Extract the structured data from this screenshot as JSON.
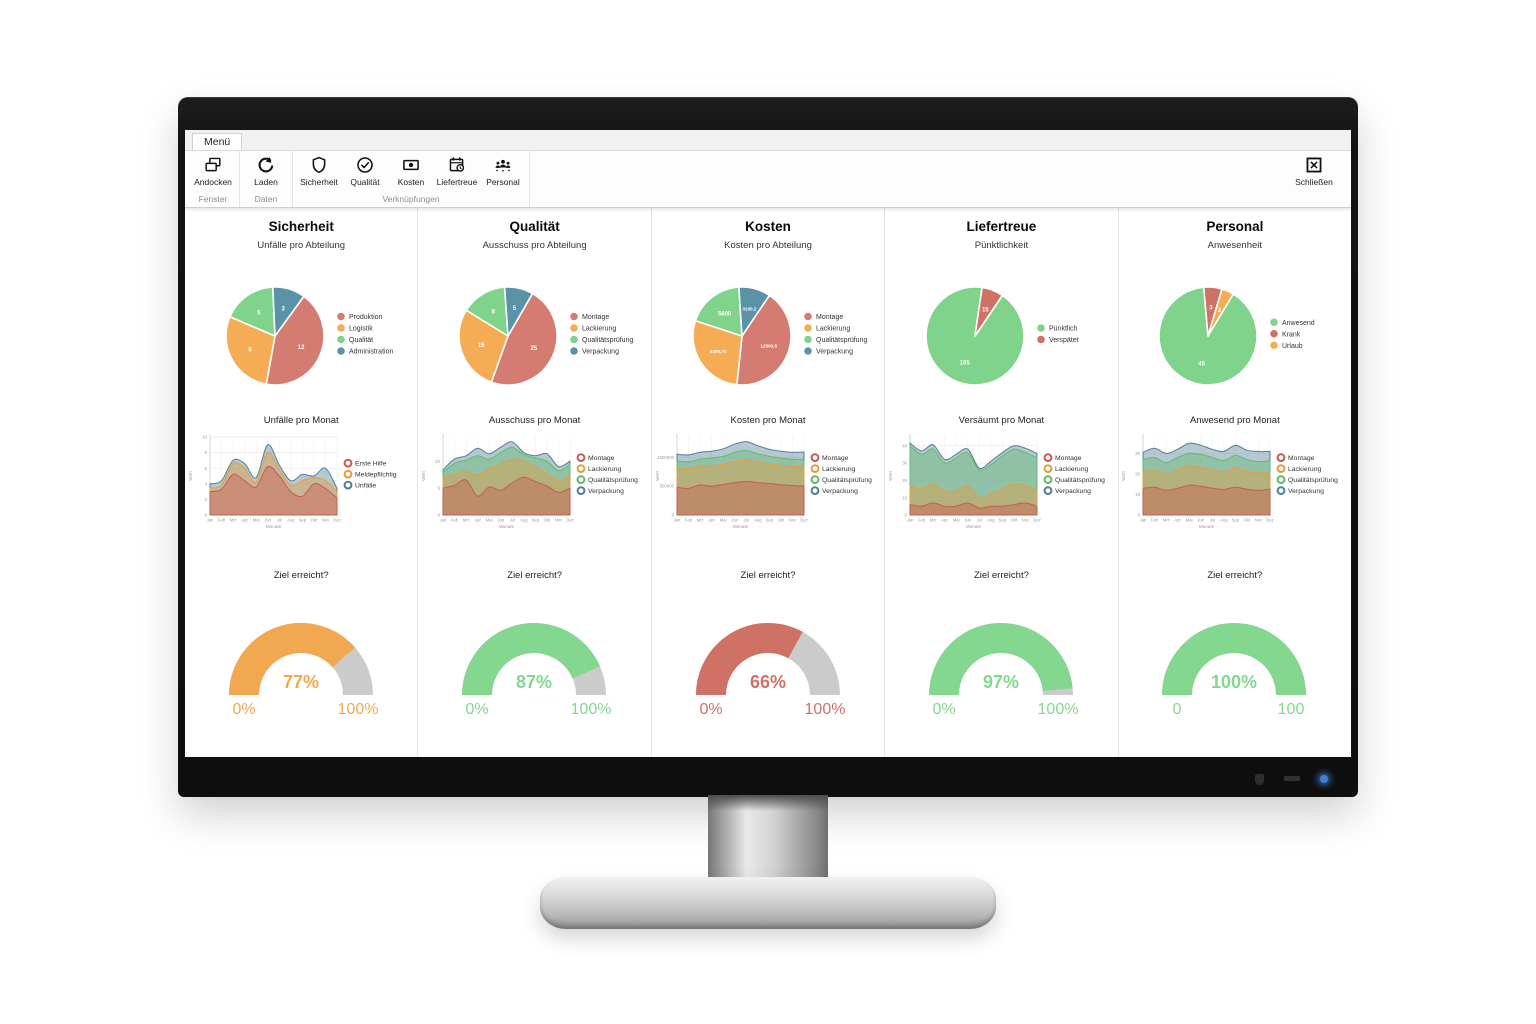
{
  "window": {
    "menu_tab": "Menü"
  },
  "ribbon": {
    "groups": [
      {
        "label": "Fenster",
        "buttons": [
          {
            "label": "Andocken",
            "icon": "dock-icon"
          }
        ]
      },
      {
        "label": "Daten",
        "buttons": [
          {
            "label": "Laden",
            "icon": "refresh-icon"
          }
        ]
      },
      {
        "label": "Verknüpfungen",
        "buttons": [
          {
            "label": "Sicherheit",
            "icon": "shield-icon"
          },
          {
            "label": "Qualität",
            "icon": "check-circle-icon"
          },
          {
            "label": "Kosten",
            "icon": "banknote-icon"
          },
          {
            "label": "Liefertreue",
            "icon": "calendar-clock-icon"
          },
          {
            "label": "Personal",
            "icon": "people-icon"
          }
        ]
      }
    ],
    "close_button": {
      "label": "Schließen",
      "icon": "close-box-icon"
    }
  },
  "colors": {
    "pie_red": "#D47B72",
    "pie_orange": "#F5AC55",
    "pie_green": "#7FD38B",
    "pie_blue": "#5C92A8",
    "gauge_orange": "#F2A851",
    "gauge_green": "#84D78E",
    "gauge_red": "#D07166",
    "gauge_track": "#CBCBCB"
  },
  "columns": [
    {
      "title": "Sicherheit",
      "subtitle": "Unfälle pro Abteilung",
      "pie": {
        "type": "pie",
        "start_angle": 36,
        "slices": [
          {
            "label": "Produktion",
            "value": 12,
            "display": "12",
            "color": "#D47B72"
          },
          {
            "label": "Logistik",
            "value": 8,
            "display": "8",
            "color": "#F5AC55"
          },
          {
            "label": "Qualität",
            "value": 5,
            "display": "5",
            "color": "#7FD38B"
          },
          {
            "label": "Administration",
            "value": 3,
            "display": "3",
            "color": "#5C92A8"
          }
        ]
      },
      "area": {
        "type": "area",
        "title": "Unfälle pro Monat",
        "xlabel": "Monate",
        "ylabel": "Wert",
        "ymax": 10,
        "yticks": [
          0,
          2,
          4,
          6,
          8,
          10
        ],
        "months": [
          "Jan",
          "Feb",
          "Mrz",
          "Apr",
          "Mai",
          "Jun",
          "Jul",
          "Aug",
          "Sep",
          "Okt",
          "Nov",
          "Dez"
        ],
        "series": [
          {
            "name": "Erste Hilfe",
            "color": "#C75B50",
            "values": [
              3,
              3.3,
              5.2,
              4.4,
              3.6,
              6.2,
              5,
              3,
              2.4,
              4,
              3.4,
              2.2
            ]
          },
          {
            "name": "Meldepflichtig",
            "color": "#E69C3E",
            "values": [
              3.5,
              3.8,
              6.6,
              6,
              4.2,
              8,
              5.8,
              3.8,
              4.4,
              4.8,
              4.4,
              3
            ]
          },
          {
            "name": "Unfälle",
            "color": "#527F97",
            "values": [
              4,
              4.4,
              7,
              6.6,
              4.8,
              9,
              6.4,
              4.4,
              5.2,
              5,
              6,
              3.4
            ]
          }
        ]
      },
      "gauge": {
        "title": "Ziel erreicht?",
        "value": 77,
        "display": "77%",
        "min_label": "0%",
        "max_label": "100%",
        "color": "#F2A851",
        "track": "#CBCBCB"
      }
    },
    {
      "title": "Qualität",
      "subtitle": "Ausschuss pro Abteilung",
      "pie": {
        "type": "pie",
        "start_angle": 30,
        "slices": [
          {
            "label": "Montage",
            "value": 25,
            "display": "25",
            "color": "#D47B72"
          },
          {
            "label": "Lackierung",
            "value": 15,
            "display": "15",
            "color": "#F5AC55"
          },
          {
            "label": "Qualitätsprüfung",
            "value": 8,
            "display": "8",
            "color": "#7FD38B"
          },
          {
            "label": "Verpackung",
            "value": 5,
            "display": "5",
            "color": "#5C92A8"
          }
        ]
      },
      "area": {
        "type": "area",
        "title": "Ausschuss pro Monat",
        "xlabel": "Monate",
        "ylabel": "Wert",
        "ymax": 14.5,
        "yticks": [
          0,
          5,
          10
        ],
        "months": [
          "Jan",
          "Feb",
          "Mrz",
          "Apr",
          "Mai",
          "Jun",
          "Jul",
          "Aug",
          "Sep",
          "Okt",
          "Nov",
          "Dez"
        ],
        "series": [
          {
            "name": "Montage",
            "color": "#C75B50",
            "values": [
              5,
              5.5,
              6.5,
              3.5,
              5.2,
              4.6,
              6,
              7,
              6.2,
              5.4,
              4.2,
              5
            ]
          },
          {
            "name": "Lackierung",
            "color": "#E69C3E",
            "values": [
              7,
              7.6,
              8.2,
              7.4,
              8.6,
              9.6,
              10.4,
              10,
              9,
              7.6,
              6.4,
              7.2
            ]
          },
          {
            "name": "Qualitätsprüfung",
            "color": "#5FBB6C",
            "values": [
              8,
              9.6,
              10.2,
              11,
              10.4,
              11.6,
              12.6,
              11.2,
              10.6,
              10,
              8.2,
              9.4
            ]
          },
          {
            "name": "Verpackung",
            "color": "#527F97",
            "values": [
              8.4,
              10.4,
              11,
              12.4,
              11.4,
              12.6,
              13.6,
              11.6,
              11,
              11.4,
              9,
              10
            ]
          }
        ]
      },
      "gauge": {
        "title": "Ziel erreicht?",
        "value": 87,
        "display": "87%",
        "min_label": "0%",
        "max_label": "100%",
        "color": "#84D78E",
        "track": "#CBCBCB"
      }
    },
    {
      "title": "Kosten",
      "subtitle": "Kosten pro Abteilung",
      "pie": {
        "type": "pie",
        "start_angle": 34,
        "slices": [
          {
            "label": "Montage",
            "value": 12500.5,
            "display": "12500,5",
            "color": "#D47B72"
          },
          {
            "label": "Lackierung",
            "value": 8400.75,
            "display": "8400,75",
            "color": "#F5AC55"
          },
          {
            "label": "Qualitätsprüfung",
            "value": 5600,
            "display": "5600",
            "color": "#7FD38B"
          },
          {
            "label": "Verpackung",
            "value": 3100.2,
            "display": "3100,2",
            "color": "#5C92A8"
          }
        ]
      },
      "area": {
        "type": "area",
        "title": "Kosten pro Monat",
        "xlabel": "Monate",
        "ylabel": "Wert",
        "ymax": 1350000,
        "yticks": [
          0,
          500000,
          1000000
        ],
        "months": [
          "Jan",
          "Feb",
          "Mrz",
          "Apr",
          "Mai",
          "Jun",
          "Jul",
          "Aug",
          "Sep",
          "Okt",
          "Nov",
          "Dez"
        ],
        "series": [
          {
            "name": "Montage",
            "color": "#C75B50",
            "values": [
              480000,
              460000,
              520000,
              500000,
              530000,
              560000,
              580000,
              560000,
              545000,
              525000,
              510000,
              500000
            ]
          },
          {
            "name": "Lackierung",
            "color": "#E69C3E",
            "values": [
              820000,
              800000,
              845000,
              855000,
              880000,
              925000,
              955000,
              915000,
              885000,
              860000,
              845000,
              830000
            ]
          },
          {
            "name": "Qualitätsprüfung",
            "color": "#5FBB6C",
            "values": [
              935000,
              920000,
              965000,
              985000,
              1015000,
              1085000,
              1115000,
              1060000,
              1015000,
              985000,
              965000,
              960000
            ]
          },
          {
            "name": "Verpackung",
            "color": "#527F97",
            "values": [
              1050000,
              1040000,
              1085000,
              1105000,
              1145000,
              1225000,
              1270000,
              1200000,
              1135000,
              1105000,
              1085000,
              1090000
            ]
          }
        ]
      },
      "gauge": {
        "title": "Ziel erreicht?",
        "value": 66,
        "display": "66%",
        "min_label": "0%",
        "max_label": "100%",
        "color": "#D07166",
        "track": "#CBCBCB"
      }
    },
    {
      "title": "Liefertreue",
      "subtitle": "Pünktlichkeit",
      "pie": {
        "type": "pie",
        "start_angle": 34,
        "slices": [
          {
            "label": "Pünktlich",
            "value": 195,
            "display": "195",
            "color": "#7FD38B"
          },
          {
            "label": "Verspätet",
            "value": 15,
            "display": "15",
            "color": "#D07166"
          }
        ]
      },
      "area": {
        "type": "area",
        "title": "Versäumt pro Monat",
        "xlabel": "Monate",
        "ylabel": "Wert",
        "ymax": 45,
        "yticks": [
          0,
          10,
          20,
          30,
          40
        ],
        "months": [
          "Jan",
          "Feb",
          "Mrz",
          "Apr",
          "Mai",
          "Jun",
          "Jul",
          "Aug",
          "Sep",
          "Okt",
          "Nov",
          "Dez"
        ],
        "series": [
          {
            "name": "Montage",
            "color": "#C75B50",
            "values": [
              6,
              5,
              7,
              5,
              5,
              7,
              4,
              5,
              5,
              6,
              7,
              5
            ]
          },
          {
            "name": "Lackierung",
            "color": "#E69C3E",
            "values": [
              17,
              15,
              18,
              14,
              14,
              17,
              10,
              12,
              15,
              18,
              17,
              14
            ]
          },
          {
            "name": "Qualitätsprüfung",
            "color": "#5FBB6C",
            "values": [
              40,
              35,
              38,
              30,
              33,
              36,
              26,
              29,
              34,
              38,
              36,
              33
            ]
          },
          {
            "name": "Verpackung",
            "color": "#527F97",
            "values": [
              41.5,
              37,
              40.5,
              32,
              35,
              38,
              27,
              31,
              36,
              40,
              38.5,
              35.5
            ]
          }
        ]
      },
      "gauge": {
        "title": "Ziel erreicht?",
        "value": 97,
        "display": "97%",
        "min_label": "0%",
        "max_label": "100%",
        "color": "#84D78E",
        "track": "#CBCBCB"
      }
    },
    {
      "title": "Personal",
      "subtitle": "Anwesenheit",
      "pie": {
        "type": "pie",
        "start_angle": 31,
        "slices": [
          {
            "label": "Anwesend",
            "value": 45,
            "display": "45",
            "color": "#7FD38B"
          },
          {
            "label": "Krank",
            "value": 3,
            "display": "3",
            "color": "#D07166"
          },
          {
            "label": "Urlaub",
            "value": 2,
            "display": "2",
            "color": "#F5AC55"
          }
        ]
      },
      "area": {
        "type": "area",
        "title": "Anwesend pro Monat",
        "xlabel": "Monate",
        "ylabel": "Wert",
        "ymax": 38,
        "yticks": [
          0,
          10,
          20,
          30
        ],
        "months": [
          "Jan",
          "Feb",
          "Mrz",
          "Apr",
          "Mai",
          "Jun",
          "Jul",
          "Aug",
          "Sep",
          "Okt",
          "Nov",
          "Dez"
        ],
        "series": [
          {
            "name": "Montage",
            "color": "#C75B50",
            "values": [
              13,
              13.5,
              12,
              13,
              14.5,
              14,
              13,
              12.5,
              13.5,
              12.5,
              12,
              12.5
            ]
          },
          {
            "name": "Lackierung",
            "color": "#E69C3E",
            "values": [
              21,
              22,
              20,
              22,
              24,
              23,
              22,
              21,
              23,
              21,
              20.5,
              20.5
            ]
          },
          {
            "name": "Qualitätsprüfung",
            "color": "#5FBB6C",
            "values": [
              27,
              28,
              25.5,
              28,
              30,
              29.5,
              28,
              26.5,
              29,
              27,
              26,
              26.5
            ]
          },
          {
            "name": "Verpackung",
            "color": "#527F97",
            "values": [
              30.5,
              32.5,
              30,
              32,
              35,
              34,
              32,
              31,
              34,
              31.5,
              31,
              31
            ]
          }
        ]
      },
      "gauge": {
        "title": "Ziel erreicht?",
        "value": 100,
        "display": "100%",
        "min_label": "0",
        "max_label": "100",
        "color": "#84D78E",
        "track": "#CBCBCB"
      }
    }
  ]
}
